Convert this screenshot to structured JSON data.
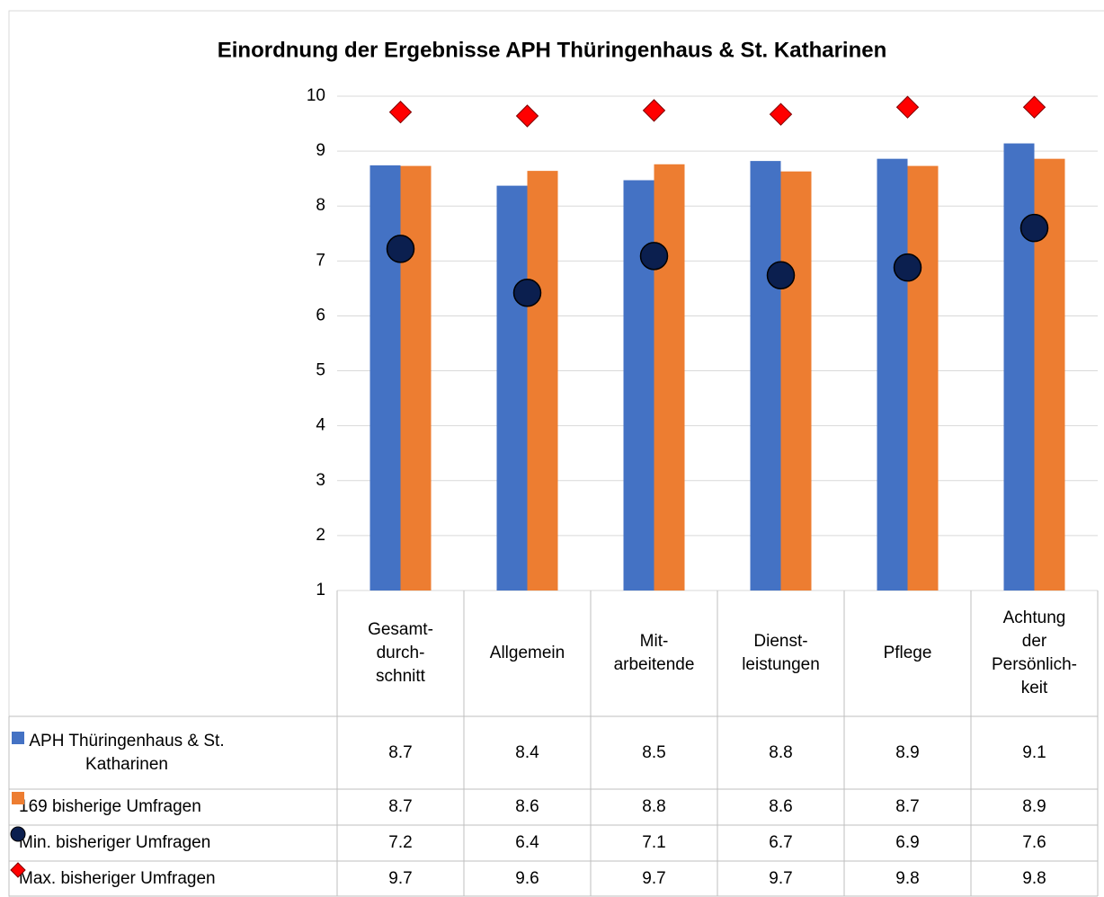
{
  "chart_data": {
    "type": "bar",
    "title": "Einordnung der Ergebnisse APH Thüringenhaus & St. Katharinen",
    "categories": [
      "Gesamt-\ndurch-\nschnitt",
      "Allgemein",
      "Mit-\narbeitende",
      "Dienst-\nleistungen",
      "Pflege",
      "Achtung\nder\nPersönlich-\nkeit"
    ],
    "ylim": [
      1,
      10
    ],
    "yticks": [
      1,
      2,
      3,
      4,
      5,
      6,
      7,
      8,
      9,
      10
    ],
    "grid": true,
    "series": [
      {
        "name": "APH Thüringenhaus & St. Katharinen",
        "type": "bar",
        "color": "#4472c4",
        "values": [
          8.74,
          8.37,
          8.47,
          8.82,
          8.86,
          9.14
        ],
        "value_labels": [
          "8.7",
          "8.4",
          "8.5",
          "8.8",
          "8.9",
          "9.1"
        ]
      },
      {
        "name": "169 bisherige Umfragen",
        "type": "bar",
        "color": "#ed7d31",
        "values": [
          8.73,
          8.64,
          8.76,
          8.63,
          8.73,
          8.86
        ],
        "value_labels": [
          "8.7",
          "8.6",
          "8.8",
          "8.6",
          "8.7",
          "8.9"
        ]
      },
      {
        "name": "Min. bisheriger Umfragen",
        "type": "circle",
        "color": "#0b1f4f",
        "values": [
          7.22,
          6.42,
          7.09,
          6.74,
          6.88,
          7.6
        ],
        "value_labels": [
          "7.2",
          "6.4",
          "7.1",
          "6.7",
          "6.9",
          "7.6"
        ]
      },
      {
        "name": "Max. bisheriger Umfragen",
        "type": "diamond",
        "color": "#ff0000",
        "values": [
          9.71,
          9.64,
          9.74,
          9.67,
          9.8,
          9.8
        ],
        "value_labels": [
          "9.7",
          "9.6",
          "9.7",
          "9.7",
          "9.8",
          "9.8"
        ]
      }
    ]
  }
}
